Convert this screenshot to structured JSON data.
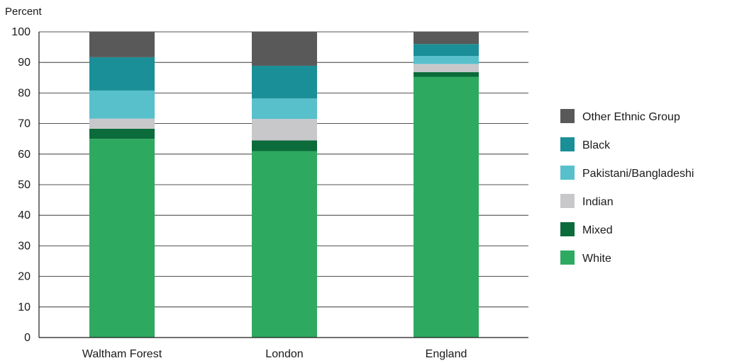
{
  "chart_data": {
    "type": "bar",
    "stacked": true,
    "title": "",
    "xlabel": "",
    "ylabel": "Percent",
    "ylim": [
      0,
      100
    ],
    "yticks": [
      0,
      10,
      20,
      30,
      40,
      50,
      60,
      70,
      80,
      90,
      100
    ],
    "grid": "horizontal",
    "legend_position": "right",
    "categories": [
      "Waltham Forest",
      "London",
      "England"
    ],
    "series": [
      {
        "name": "White",
        "color": "#2eaa60",
        "values": [
          65.0,
          61.0,
          85.3
        ]
      },
      {
        "name": "Mixed",
        "color": "#0b6b3a",
        "values": [
          3.3,
          3.5,
          1.5
        ]
      },
      {
        "name": "Indian",
        "color": "#c8c8cb",
        "values": [
          3.3,
          7.0,
          2.7
        ]
      },
      {
        "name": "Pakistani/Bangladeshi",
        "color": "#57c0cb",
        "values": [
          9.2,
          6.7,
          2.6
        ]
      },
      {
        "name": "Black",
        "color": "#1a8f97",
        "values": [
          10.9,
          10.7,
          3.9
        ]
      },
      {
        "name": "Other Ethnic Group",
        "color": "#595959",
        "values": [
          8.3,
          11.1,
          4.0
        ]
      }
    ]
  }
}
